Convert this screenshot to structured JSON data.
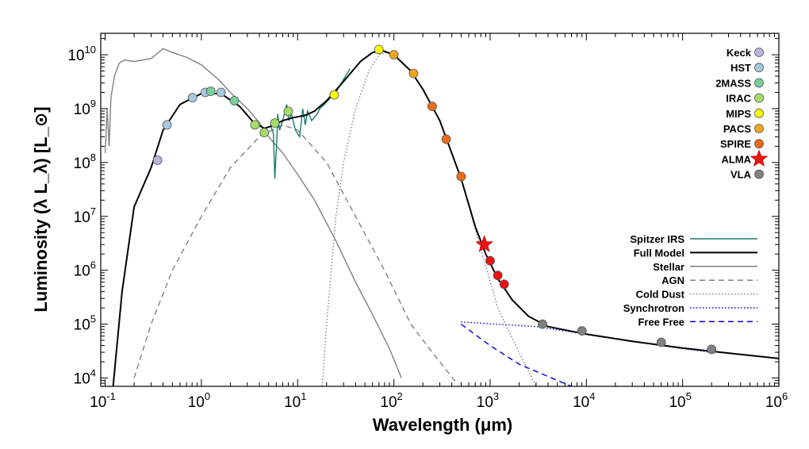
{
  "chart_data": {
    "type": "line",
    "title": "",
    "xlabel": "Wavelength (μm)",
    "ylabel": "Luminosity (λ L_λ) [L_⊙]",
    "xscale": "log",
    "yscale": "log",
    "xlim": [
      0.09,
      1000000
    ],
    "ylim": [
      7000,
      25000000000
    ],
    "grid": false,
    "x_tick_labels": [
      {
        "base": "10",
        "exp": "-1",
        "value": 0.1
      },
      {
        "base": "10",
        "exp": "0",
        "value": 1
      },
      {
        "base": "10",
        "exp": "1",
        "value": 10
      },
      {
        "base": "10",
        "exp": "2",
        "value": 100
      },
      {
        "base": "10",
        "exp": "3",
        "value": 1000
      },
      {
        "base": "10",
        "exp": "4",
        "value": 10000
      },
      {
        "base": "10",
        "exp": "5",
        "value": 100000
      },
      {
        "base": "10",
        "exp": "6",
        "value": 1000000
      }
    ],
    "y_tick_labels": [
      {
        "base": "10",
        "exp": "4",
        "value": 10000
      },
      {
        "base": "10",
        "exp": "5",
        "value": 100000
      },
      {
        "base": "10",
        "exp": "6",
        "value": 1000000
      },
      {
        "base": "10",
        "exp": "7",
        "value": 10000000
      },
      {
        "base": "10",
        "exp": "8",
        "value": 100000000
      },
      {
        "base": "10",
        "exp": "9",
        "value": 1000000000
      },
      {
        "base": "10",
        "exp": "10",
        "value": 10000000000
      }
    ],
    "series": [
      {
        "name": "Spitzer IRS",
        "style": "solid",
        "color": "#1a7a6e",
        "points": [
          [
            5.2,
            500000000.0
          ],
          [
            5.6,
            350000000.0
          ],
          [
            5.8,
            50000000.0
          ],
          [
            6.1,
            300000000.0
          ],
          [
            6.2,
            800000000.0
          ],
          [
            6.5,
            400000000.0
          ],
          [
            7.0,
            600000000.0
          ],
          [
            7.7,
            1200000000.0
          ],
          [
            8.1,
            600000000.0
          ],
          [
            8.6,
            800000000.0
          ],
          [
            9.5,
            400000000.0
          ],
          [
            10.5,
            300000000.0
          ],
          [
            11.3,
            1000000000.0
          ],
          [
            12.0,
            500000000.0
          ],
          [
            12.7,
            900000000.0
          ],
          [
            14.0,
            600000000.0
          ],
          [
            16.0,
            800000000.0
          ],
          [
            17.0,
            1000000000.0
          ],
          [
            19.0,
            1200000000.0
          ],
          [
            22.0,
            1600000000.0
          ],
          [
            25.0,
            2000000000.0
          ],
          [
            30.0,
            3500000000.0
          ],
          [
            35.0,
            5500000000.0
          ]
        ]
      },
      {
        "name": "Full Model",
        "style": "solid",
        "color": "#000000",
        "points": [
          [
            0.12,
            6000.0
          ],
          [
            0.15,
            400000.0
          ],
          [
            0.2,
            15000000.0
          ],
          [
            0.3,
            80000000.0
          ],
          [
            0.4,
            400000000.0
          ],
          [
            0.6,
            1200000000.0
          ],
          [
            1.0,
            1900000000.0
          ],
          [
            1.6,
            1900000000.0
          ],
          [
            2.5,
            1100000000.0
          ],
          [
            3.5,
            550000000.0
          ],
          [
            4.5,
            430000000.0
          ],
          [
            5.5,
            480000000.0
          ],
          [
            7.0,
            600000000.0
          ],
          [
            9.0,
            680000000.0
          ],
          [
            12.0,
            750000000.0
          ],
          [
            15.0,
            900000000.0
          ],
          [
            20.0,
            1400000000.0
          ],
          [
            30.0,
            3200000000.0
          ],
          [
            45.0,
            7500000000.0
          ],
          [
            60.0,
            11000000000.0
          ],
          [
            75.0,
            12000000000.0
          ],
          [
            100.0,
            10000000000.0
          ],
          [
            150.0,
            5000000000.0
          ],
          [
            200.0,
            2300000000.0
          ],
          [
            300.0,
            600000000.0
          ],
          [
            500.0,
            50000000.0
          ],
          [
            700.0,
            6500000.0
          ],
          [
            900.0,
            2000000.0
          ],
          [
            1200.0,
            700000.0
          ],
          [
            1700.0,
            280000.0
          ],
          [
            2500.0,
            140000.0
          ],
          [
            4000.0,
            90000.0
          ],
          [
            10000.0,
            65000.0
          ],
          [
            30000.0,
            48000.0
          ],
          [
            100000.0,
            36000.0
          ],
          [
            300000.0,
            29000.0
          ],
          [
            1000000.0,
            23000.0
          ]
        ]
      },
      {
        "name": "Stellar",
        "style": "solid",
        "color": "#808080",
        "points": [
          [
            0.1,
            150000000.0
          ],
          [
            0.105,
            1000000000.0
          ],
          [
            0.11,
            200000000.0
          ],
          [
            0.115,
            1600000000.0
          ],
          [
            0.125,
            4000000000.0
          ],
          [
            0.14,
            7000000000.0
          ],
          [
            0.16,
            8000000000.0
          ],
          [
            0.2,
            7500000000.0
          ],
          [
            0.3,
            8500000000.0
          ],
          [
            0.4,
            13000000000.0
          ],
          [
            0.5,
            11000000000.0
          ],
          [
            0.7,
            9000000000.0
          ],
          [
            1.0,
            6500000000.0
          ],
          [
            1.5,
            3500000000.0
          ],
          [
            2.0,
            2000000000.0
          ],
          [
            3.0,
            1000000000.0
          ],
          [
            4.0,
            550000000.0
          ],
          [
            5.0,
            300000000.0
          ],
          [
            7.0,
            150000000.0
          ],
          [
            10.0,
            60000000.0
          ],
          [
            15.0,
            20000000.0
          ],
          [
            25.0,
            3500000.0
          ],
          [
            40.0,
            600000.0
          ],
          [
            60.0,
            150000.0
          ],
          [
            90.0,
            35000.0
          ],
          [
            120.0,
            10000.0
          ]
        ]
      },
      {
        "name": "AGN",
        "style": "dashed",
        "color": "#808080",
        "points": [
          [
            0.2,
            10000.0
          ],
          [
            0.3,
            100000.0
          ],
          [
            0.5,
            1000000.0
          ],
          [
            1.0,
            10000000.0
          ],
          [
            2.0,
            80000000.0
          ],
          [
            4.0,
            300000000.0
          ],
          [
            7.0,
            500000000.0
          ],
          [
            10.0,
            400000000.0
          ],
          [
            20.0,
            100000000.0
          ],
          [
            40.0,
            10000000.0
          ],
          [
            80.0,
            1000000.0
          ],
          [
            150.0,
            100000.0
          ],
          [
            250.0,
            30000.0
          ],
          [
            450.0,
            8000.0
          ]
        ]
      },
      {
        "name": "Cold Dust",
        "style": "dotted",
        "color": "#808080",
        "points": [
          [
            18.0,
            7000.0
          ],
          [
            20.0,
            100000.0
          ],
          [
            25.0,
            10000000.0
          ],
          [
            30.0,
            100000000.0
          ],
          [
            40.0,
            1000000000.0
          ],
          [
            55.0,
            5000000000.0
          ],
          [
            70.0,
            10000000000.0
          ],
          [
            85.0,
            11000000000.0
          ],
          [
            100.0,
            10000000000.0
          ],
          [
            150.0,
            5000000000.0
          ],
          [
            200.0,
            2300000000.0
          ],
          [
            300.0,
            600000000.0
          ],
          [
            500.0,
            50000000.0
          ],
          [
            800.0,
            2500000.0
          ],
          [
            1200.0,
            200000.0
          ],
          [
            2000.0,
            30000.0
          ],
          [
            3000.0,
            7000.0
          ]
        ]
      },
      {
        "name": "Synchrotron",
        "style": "dotted",
        "color": "#0000dd",
        "points": [
          [
            500.0,
            110000.0
          ],
          [
            3000.0,
            90000.0
          ],
          [
            10000.0,
            65000.0
          ],
          [
            30000.0,
            48000.0
          ],
          [
            100000.0,
            35000.0
          ],
          [
            200000.0,
            30000.0
          ]
        ]
      },
      {
        "name": "Free Free",
        "style": "dashed",
        "color": "#0000dd",
        "points": [
          [
            500.0,
            100000.0
          ],
          [
            1000.0,
            40000.0
          ],
          [
            2000.0,
            18000.0
          ],
          [
            5000.0,
            9000.0
          ],
          [
            7000.0,
            7000.0
          ]
        ]
      }
    ],
    "photometry": [
      {
        "name": "Keck",
        "color": "#b9b3dd",
        "marker": "circle",
        "points": [
          [
            0.35,
            110000000.0
          ]
        ]
      },
      {
        "name": "HST",
        "color": "#a6c7de",
        "marker": "circle",
        "points": [
          [
            0.44,
            500000000.0
          ],
          [
            0.81,
            1600000000.0
          ],
          [
            1.1,
            2000000000.0
          ],
          [
            1.6,
            2000000000.0
          ]
        ]
      },
      {
        "name": "2MASS",
        "color": "#78d09a",
        "marker": "circle",
        "points": [
          [
            1.25,
            2100000000.0
          ],
          [
            2.2,
            1400000000.0
          ]
        ]
      },
      {
        "name": "IRAC",
        "color": "#a6dd66",
        "marker": "circle",
        "points": [
          [
            3.6,
            500000000.0
          ],
          [
            4.5,
            360000000.0
          ],
          [
            5.8,
            540000000.0
          ],
          [
            8.0,
            890000000.0
          ]
        ]
      },
      {
        "name": "MIPS",
        "color": "#ffff00",
        "marker": "circle",
        "points": [
          [
            24.0,
            1800000000.0
          ],
          [
            70.0,
            12500000000.0
          ]
        ]
      },
      {
        "name": "PACS",
        "color": "#f2a51c",
        "marker": "circle",
        "points": [
          [
            100.0,
            10000000000.0
          ],
          [
            160.0,
            4500000000.0
          ]
        ]
      },
      {
        "name": "SPIRE",
        "color": "#ee6a18",
        "marker": "circle",
        "points": [
          [
            250.0,
            1100000000.0
          ],
          [
            350.0,
            270000000.0
          ],
          [
            500.0,
            55000000.0
          ]
        ]
      },
      {
        "name": "ALMA",
        "color": "#ee1111",
        "marker": "star",
        "points": [
          [
            870.0,
            3000000.0
          ],
          [
            1000.0,
            1500000.0
          ],
          [
            1200.0,
            800000.0
          ],
          [
            1400.0,
            550000.0
          ]
        ]
      },
      {
        "name": "VLA",
        "color": "#808080",
        "marker": "circle",
        "points": [
          [
            3500.0,
            100000.0
          ],
          [
            9000.0,
            75000.0
          ],
          [
            60000.0,
            46000.0
          ],
          [
            200000.0,
            34000.0
          ]
        ]
      }
    ],
    "legend_placement": "top-right (photometry) and right (model lines)"
  }
}
